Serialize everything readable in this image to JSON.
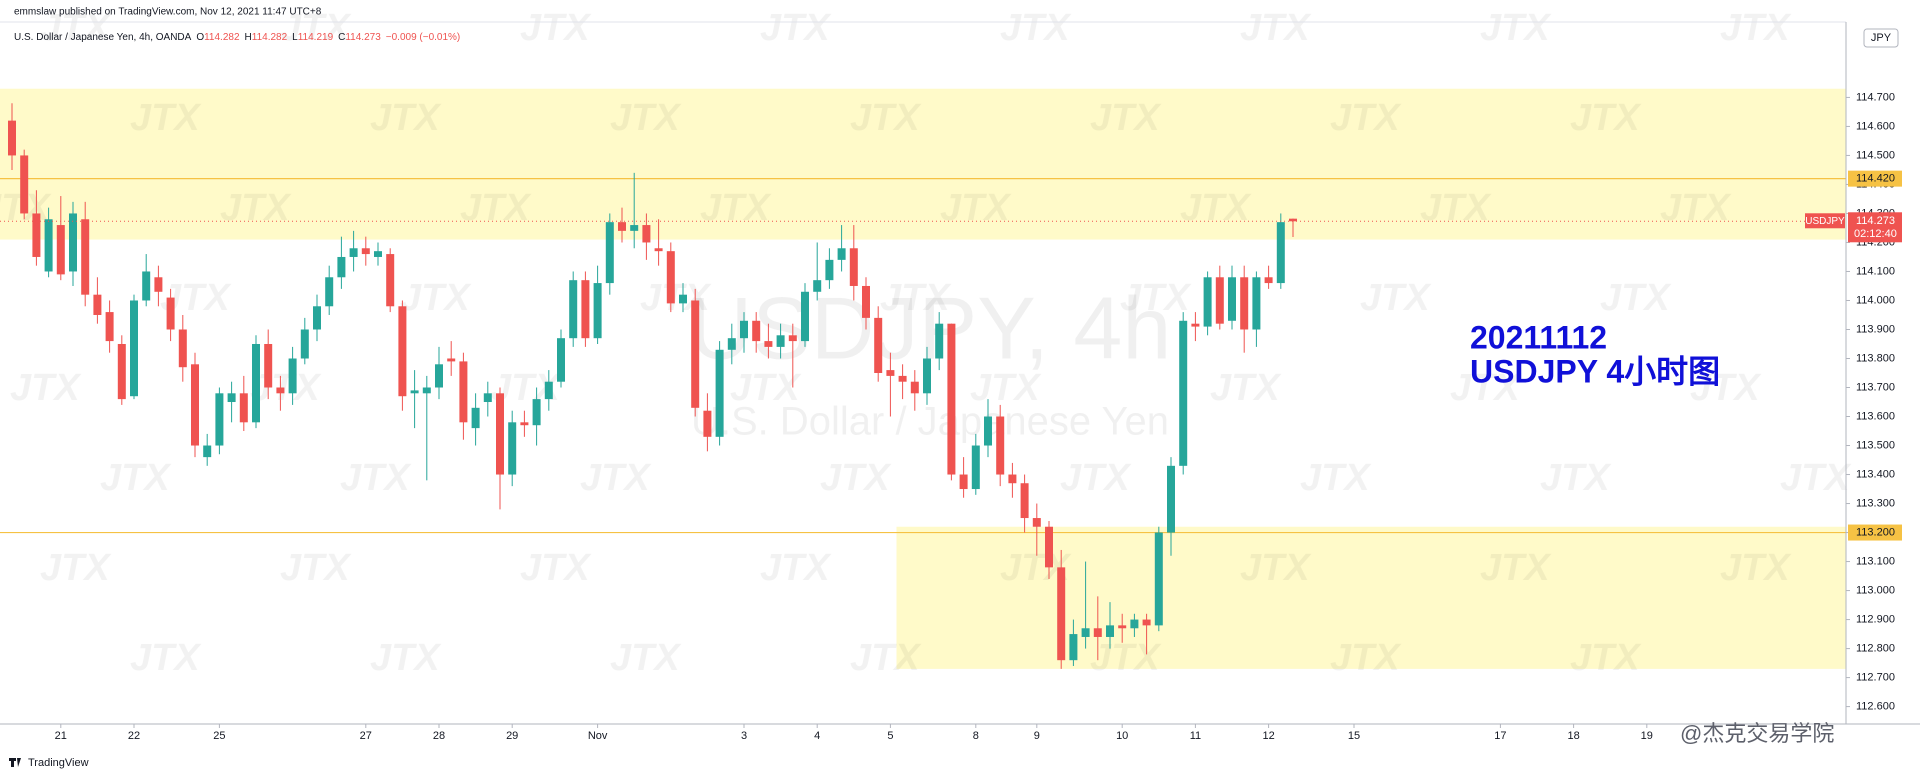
{
  "header": {
    "published": "emmslaw published on TradingView.com, Nov 12, 2021 11:47 UTC+8",
    "symbol_info": "U.S. Dollar / Japanese Yen, 4h, OANDA",
    "legend_keys": [
      "O",
      "H",
      "L",
      "C"
    ],
    "change": "−0.009 (−0.01%)"
  },
  "footer": {
    "brand": "TradingView",
    "credit": "@杰克交易学院"
  },
  "watermark": {
    "symbol": "USDJPY, 4h",
    "description": "U.S. Dollar / Japanese Yen",
    "logo": "JTX"
  },
  "chart_data": {
    "type": "candlestick",
    "symbol": "USDJPY",
    "currency": "JPY",
    "countdown": "02:12:40",
    "annotation": [
      "20211112",
      "USDJPY 4小时图"
    ],
    "up_color": "#26a69a",
    "down_color": "#ef5350",
    "zone_color": "#fff59d",
    "level_color": "#f6c244",
    "annotation_color": "#1010d8",
    "ylim": [
      112.54,
      114.96
    ],
    "yticks": [
      {
        "value": 112.6,
        "label": "112.600"
      },
      {
        "value": 112.7,
        "label": "112.700"
      },
      {
        "value": 112.8,
        "label": "112.800"
      },
      {
        "value": 112.9,
        "label": "112.900"
      },
      {
        "value": 113.0,
        "label": "113.000"
      },
      {
        "value": 113.1,
        "label": "113.100"
      },
      {
        "value": 113.2,
        "label": "113.200"
      },
      {
        "value": 113.3,
        "label": "113.300"
      },
      {
        "value": 113.4,
        "label": "113.400"
      },
      {
        "value": 113.5,
        "label": "113.500"
      },
      {
        "value": 113.6,
        "label": "113.600"
      },
      {
        "value": 113.7,
        "label": "113.700"
      },
      {
        "value": 113.8,
        "label": "113.800"
      },
      {
        "value": 113.9,
        "label": "113.900"
      },
      {
        "value": 114.0,
        "label": "114.000"
      },
      {
        "value": 114.1,
        "label": "114.100"
      },
      {
        "value": 114.2,
        "label": "114.200"
      },
      {
        "value": 114.3,
        "label": "114.300"
      },
      {
        "value": 114.4,
        "label": "114.400"
      },
      {
        "value": 114.5,
        "label": "114.500"
      },
      {
        "value": 114.6,
        "label": "114.600"
      },
      {
        "value": 114.7,
        "label": "114.700"
      }
    ],
    "levels": [
      {
        "value": 114.42,
        "label": "114.420"
      },
      {
        "value": 113.2,
        "label": "113.200"
      }
    ],
    "zones": [
      {
        "top": 114.73,
        "bottom": 114.21
      },
      {
        "top": 113.22,
        "bottom": 112.73,
        "start": 73
      }
    ],
    "categories": [
      null,
      null,
      null,
      null,
      "21",
      null,
      null,
      null,
      null,
      null,
      "22",
      null,
      null,
      null,
      null,
      null,
      null,
      "25",
      null,
      null,
      null,
      null,
      null,
      null,
      null,
      null,
      null,
      null,
      null,
      "27",
      null,
      null,
      null,
      null,
      null,
      "28",
      null,
      null,
      null,
      null,
      null,
      "29",
      null,
      null,
      null,
      null,
      null,
      null,
      "Nov",
      null,
      null,
      null,
      null,
      null,
      null,
      null,
      null,
      null,
      null,
      null,
      "3",
      null,
      null,
      null,
      null,
      null,
      "4",
      null,
      null,
      null,
      null,
      null,
      "5",
      null,
      null,
      null,
      null,
      null,
      null,
      "8",
      null,
      null,
      null,
      null,
      "9",
      null,
      null,
      null,
      null,
      null,
      null,
      "10",
      null,
      null,
      null,
      null,
      null,
      "11",
      null,
      null,
      null,
      null,
      null,
      "12",
      null,
      null,
      null,
      null,
      null,
      null,
      "15",
      null,
      null,
      null,
      null,
      null,
      null,
      null,
      null,
      null,
      null,
      null,
      "17",
      null,
      null,
      null,
      null,
      null,
      "18",
      null,
      null,
      null,
      null,
      null,
      "19",
      null,
      null,
      null,
      null,
      null,
      null,
      null,
      null,
      null,
      null,
      null,
      null,
      null,
      null,
      null,
      null
    ],
    "open": [
      114.62,
      114.5,
      114.3,
      114.1,
      114.26,
      114.1,
      114.28,
      114.02,
      113.96,
      113.85,
      113.67,
      114.0,
      114.08,
      114.01,
      113.9,
      113.78,
      113.46,
      113.5,
      113.65,
      113.68,
      113.58,
      113.85,
      113.7,
      113.68,
      113.8,
      113.9,
      113.98,
      114.08,
      114.15,
      114.18,
      114.15,
      114.16,
      113.98,
      113.68,
      113.68,
      113.7,
      113.8,
      113.79,
      113.56,
      113.65,
      113.68,
      113.4,
      113.58,
      113.57,
      113.66,
      113.72,
      113.87,
      114.07,
      113.87,
      114.06,
      114.27,
      114.24,
      114.26,
      114.18,
      114.17,
      113.99,
      114.0,
      113.62,
      113.53,
      113.83,
      113.87,
      113.93,
      113.86,
      113.84,
      113.88,
      113.86,
      114.03,
      114.07,
      114.14,
      114.18,
      114.05,
      113.94,
      113.76,
      113.74,
      113.72,
      113.68,
      113.8,
      113.92,
      113.4,
      113.35,
      113.5,
      113.6,
      113.4,
      113.37,
      113.25,
      113.22,
      113.08,
      112.76,
      112.84,
      112.87,
      112.84,
      112.88,
      112.87,
      112.9,
      112.88,
      113.2,
      113.43,
      113.92,
      113.91,
      114.08,
      113.93,
      114.08,
      113.9,
      114.08,
      114.06,
      114.282,
      null,
      null,
      null,
      null,
      null,
      null,
      null,
      null,
      null,
      null,
      null,
      null,
      null,
      null,
      null,
      null,
      null,
      null,
      null,
      null,
      null,
      null,
      null,
      null,
      null,
      null,
      null,
      null,
      null,
      null,
      null,
      null,
      null,
      null,
      null,
      null,
      null,
      null,
      null,
      null,
      null,
      null,
      null,
      null,
      null
    ],
    "high": [
      114.68,
      114.52,
      114.38,
      114.32,
      114.36,
      114.34,
      114.34,
      114.08,
      114.0,
      113.88,
      114.02,
      114.16,
      114.12,
      114.04,
      113.95,
      113.82,
      113.54,
      113.7,
      113.72,
      113.74,
      113.88,
      113.9,
      113.74,
      113.84,
      113.94,
      114.02,
      114.12,
      114.22,
      114.24,
      114.22,
      114.2,
      114.18,
      114.0,
      113.76,
      113.74,
      113.84,
      113.86,
      113.82,
      113.68,
      113.72,
      113.7,
      113.62,
      113.62,
      113.7,
      113.76,
      113.9,
      114.1,
      114.1,
      114.12,
      114.3,
      114.32,
      114.44,
      114.3,
      114.28,
      114.2,
      114.06,
      114.04,
      113.68,
      113.86,
      113.92,
      113.96,
      113.96,
      113.92,
      113.92,
      113.92,
      114.06,
      114.2,
      114.18,
      114.26,
      114.26,
      114.08,
      113.98,
      113.82,
      113.78,
      113.76,
      113.84,
      113.96,
      113.92,
      113.46,
      113.54,
      113.66,
      113.64,
      113.44,
      113.4,
      113.3,
      113.24,
      113.14,
      112.9,
      113.1,
      112.98,
      112.96,
      112.92,
      112.92,
      112.92,
      113.22,
      113.46,
      113.96,
      113.96,
      114.1,
      114.12,
      114.12,
      114.12,
      114.1,
      114.12,
      114.3,
      114.282,
      null,
      null,
      null,
      null,
      null,
      null,
      null,
      null,
      null,
      null,
      null,
      null,
      null,
      null,
      null,
      null,
      null,
      null,
      null,
      null,
      null,
      null,
      null,
      null,
      null,
      null,
      null,
      null,
      null,
      null,
      null,
      null,
      null,
      null,
      null,
      null,
      null,
      null,
      null,
      null,
      null,
      null,
      null,
      null,
      null
    ],
    "low": [
      114.45,
      114.28,
      114.12,
      114.08,
      114.07,
      114.05,
      113.98,
      113.92,
      113.82,
      113.64,
      113.66,
      113.98,
      113.98,
      113.86,
      113.72,
      113.46,
      113.43,
      113.47,
      113.58,
      113.55,
      113.56,
      113.66,
      113.62,
      113.64,
      113.78,
      113.86,
      113.95,
      114.04,
      114.1,
      114.12,
      114.12,
      113.96,
      113.62,
      113.56,
      113.38,
      113.66,
      113.74,
      113.52,
      113.5,
      113.6,
      113.28,
      113.36,
      113.53,
      113.5,
      113.62,
      113.7,
      113.84,
      113.84,
      113.85,
      114.02,
      114.2,
      114.18,
      114.14,
      114.12,
      113.96,
      113.96,
      113.6,
      113.48,
      113.5,
      113.78,
      113.82,
      113.82,
      113.8,
      113.8,
      113.7,
      113.84,
      114.0,
      114.04,
      114.1,
      114.0,
      113.9,
      113.72,
      113.6,
      113.66,
      113.62,
      113.64,
      113.76,
      113.38,
      113.32,
      113.33,
      113.46,
      113.36,
      113.32,
      113.2,
      113.12,
      113.04,
      112.73,
      112.74,
      112.8,
      112.76,
      112.8,
      112.82,
      112.84,
      112.78,
      112.86,
      113.12,
      113.4,
      113.86,
      113.88,
      113.9,
      113.9,
      113.82,
      113.84,
      114.04,
      114.04,
      114.219,
      null,
      null,
      null,
      null,
      null,
      null,
      null,
      null,
      null,
      null,
      null,
      null,
      null,
      null,
      null,
      null,
      null,
      null,
      null,
      null,
      null,
      null,
      null,
      null,
      null,
      null,
      null,
      null,
      null,
      null,
      null,
      null,
      null,
      null,
      null,
      null,
      null,
      null,
      null,
      null,
      null,
      null,
      null,
      null,
      null
    ],
    "close": [
      114.5,
      114.3,
      114.15,
      114.28,
      114.09,
      114.3,
      114.02,
      113.95,
      113.86,
      113.66,
      114.0,
      114.1,
      114.03,
      113.9,
      113.77,
      113.5,
      113.5,
      113.68,
      113.68,
      113.58,
      113.85,
      113.7,
      113.68,
      113.8,
      113.9,
      113.98,
      114.08,
      114.15,
      114.18,
      114.16,
      114.17,
      113.98,
      113.67,
      113.69,
      113.7,
      113.78,
      113.79,
      113.58,
      113.63,
      113.68,
      113.4,
      113.58,
      113.57,
      113.66,
      113.72,
      113.87,
      114.07,
      113.87,
      114.06,
      114.27,
      114.24,
      114.26,
      114.2,
      114.17,
      113.99,
      114.02,
      113.63,
      113.53,
      113.83,
      113.87,
      113.93,
      113.86,
      113.84,
      113.88,
      113.86,
      114.03,
      114.07,
      114.14,
      114.18,
      114.05,
      113.94,
      113.75,
      113.74,
      113.72,
      113.68,
      113.8,
      113.92,
      113.4,
      113.35,
      113.5,
      113.6,
      113.4,
      113.37,
      113.25,
      113.22,
      113.08,
      112.76,
      112.85,
      112.87,
      112.84,
      112.88,
      112.87,
      112.9,
      112.88,
      113.2,
      113.43,
      113.93,
      113.91,
      114.08,
      113.92,
      114.08,
      113.9,
      114.08,
      114.06,
      114.27,
      114.273,
      null,
      null,
      null,
      null,
      null,
      null,
      null,
      null,
      null,
      null,
      null,
      null,
      null,
      null,
      null,
      null,
      null,
      null,
      null,
      null,
      null,
      null,
      null,
      null,
      null,
      null,
      null,
      null,
      null,
      null,
      null,
      null,
      null,
      null,
      null,
      null,
      null,
      null,
      null,
      null,
      null,
      null,
      null,
      null,
      null
    ]
  }
}
